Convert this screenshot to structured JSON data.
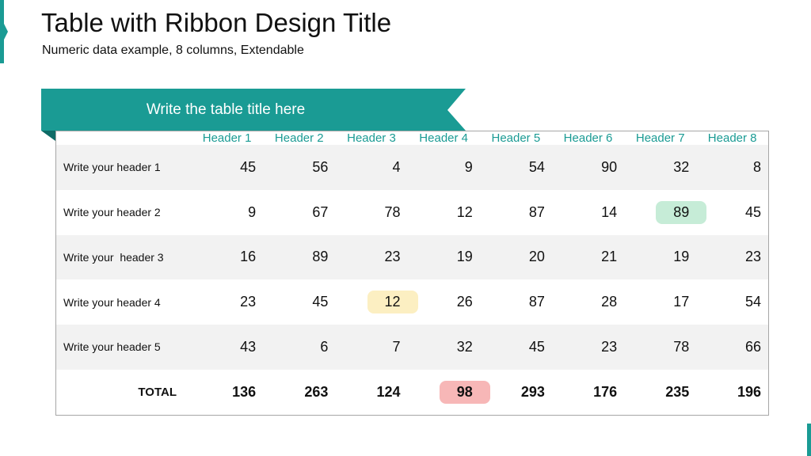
{
  "header": {
    "title": "Table with Ribbon Design Title",
    "subtitle": "Numeric data example, 8 columns, Extendable"
  },
  "table": {
    "title": "Write the table title here",
    "columns": [
      "Header 1",
      "Header 2",
      "Header 3",
      "Header 4",
      "Header 5",
      "Header 6",
      "Header 7",
      "Header 8"
    ],
    "rows": [
      {
        "label": "Write your header 1",
        "values": [
          45,
          56,
          4,
          9,
          54,
          90,
          32,
          8
        ]
      },
      {
        "label": "Write your header 2",
        "values": [
          9,
          67,
          78,
          12,
          87,
          14,
          89,
          45
        ]
      },
      {
        "label": "Write your  header 3",
        "values": [
          16,
          89,
          23,
          19,
          20,
          21,
          19,
          23
        ]
      },
      {
        "label": "Write your header 4",
        "values": [
          23,
          45,
          12,
          26,
          87,
          28,
          17,
          54
        ]
      },
      {
        "label": "Write your header 5",
        "values": [
          43,
          6,
          7,
          32,
          45,
          23,
          78,
          66
        ]
      }
    ],
    "total": {
      "label": "TOTAL",
      "values": [
        136,
        263,
        124,
        98,
        293,
        176,
        235,
        196
      ]
    }
  }
}
